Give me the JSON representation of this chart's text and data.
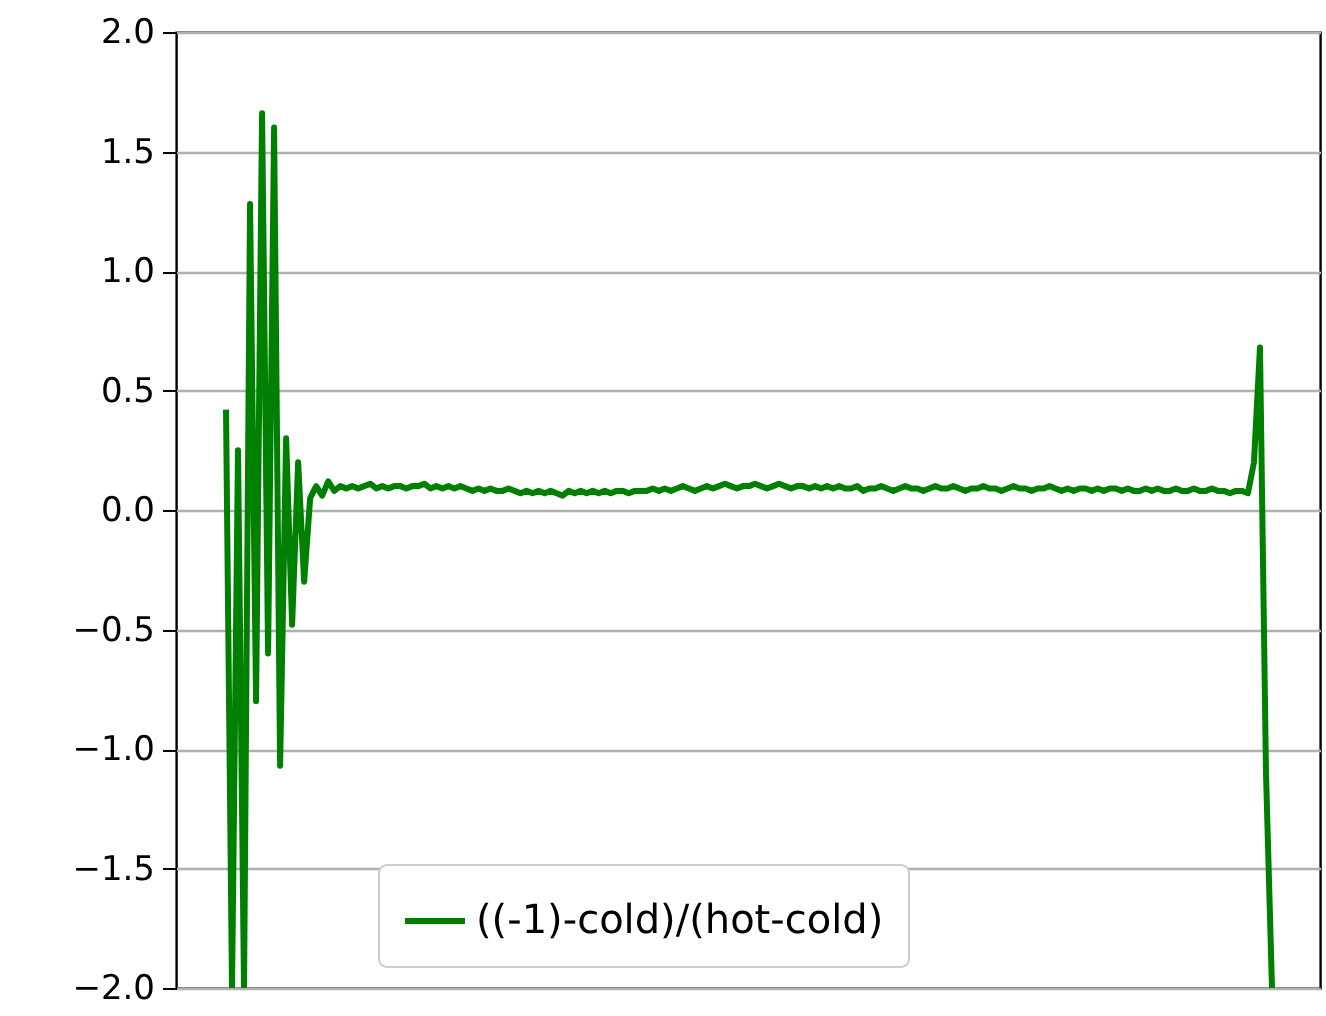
{
  "chart_data": {
    "type": "line",
    "ylim": [
      -2,
      2
    ],
    "yticks": [
      {
        "value": -2,
        "label": "−2.0"
      },
      {
        "value": -1.5,
        "label": "−1.5"
      },
      {
        "value": -1,
        "label": "−1.0"
      },
      {
        "value": -0.5,
        "label": "−0.5"
      },
      {
        "value": 0,
        "label": "0.0"
      },
      {
        "value": 0.5,
        "label": "0.5"
      },
      {
        "value": 1,
        "label": "1.0"
      },
      {
        "value": 1.5,
        "label": "1.5"
      },
      {
        "value": 2,
        "label": "2.0"
      }
    ],
    "grid": "y",
    "legend": "bottom",
    "tick_labels": "y",
    "categories": [
      null,
      null,
      null,
      null,
      null,
      null,
      null,
      null,
      null,
      null,
      null,
      null,
      null,
      null,
      null,
      null,
      null,
      null,
      null,
      null,
      null,
      null,
      null,
      null,
      null,
      null,
      null,
      null,
      null,
      null,
      null,
      null,
      null,
      null,
      null,
      null,
      null,
      null,
      null,
      null,
      null,
      null,
      null,
      null,
      null,
      null,
      null,
      null,
      null,
      null,
      null,
      null,
      null,
      null,
      null,
      null,
      null,
      null,
      null,
      null,
      null,
      null,
      null,
      null,
      null,
      null,
      null,
      null,
      null,
      null,
      null,
      null,
      null,
      null,
      null,
      null,
      null,
      null,
      null,
      null,
      null,
      null,
      null,
      null,
      null,
      null,
      null,
      null,
      null,
      null,
      null,
      null,
      null,
      null,
      null,
      null,
      null,
      null,
      null,
      null,
      null,
      null,
      null,
      null,
      null,
      null,
      null,
      null,
      null,
      null,
      null,
      null,
      null,
      null,
      null,
      null,
      null,
      null,
      null,
      null,
      null,
      null,
      null,
      null,
      null,
      null,
      null,
      null,
      null,
      null,
      null,
      null,
      null,
      null,
      null,
      null,
      null,
      null,
      null,
      null,
      null,
      null,
      null,
      null,
      null,
      null,
      null,
      null,
      null,
      null,
      null,
      null,
      null,
      null,
      null,
      null,
      null,
      null,
      null,
      null,
      null,
      null,
      null,
      null,
      null,
      null,
      null,
      null,
      null,
      null,
      null,
      null,
      null,
      null,
      null
    ],
    "series": [
      {
        "name": "((-1)-cold)/(hot-cold)",
        "color": "#008000",
        "values": [
          0.42,
          -2.0,
          0.25,
          -2.0,
          1.28,
          -0.8,
          1.66,
          -0.6,
          1.6,
          -1.07,
          0.3,
          -0.48,
          0.2,
          -0.3,
          0.05,
          0.1,
          0.06,
          0.12,
          0.08,
          0.1,
          0.09,
          0.1,
          0.09,
          0.1,
          0.11,
          0.09,
          0.1,
          0.09,
          0.1,
          0.1,
          0.09,
          0.1,
          0.1,
          0.11,
          0.09,
          0.1,
          0.09,
          0.1,
          0.09,
          0.1,
          0.09,
          0.08,
          0.09,
          0.08,
          0.09,
          0.08,
          0.08,
          0.09,
          0.08,
          0.07,
          0.08,
          0.07,
          0.08,
          0.07,
          0.08,
          0.07,
          0.06,
          0.08,
          0.07,
          0.08,
          0.07,
          0.08,
          0.07,
          0.08,
          0.07,
          0.08,
          0.08,
          0.07,
          0.08,
          0.08,
          0.08,
          0.09,
          0.08,
          0.09,
          0.08,
          0.09,
          0.1,
          0.09,
          0.08,
          0.09,
          0.1,
          0.09,
          0.1,
          0.11,
          0.1,
          0.09,
          0.1,
          0.1,
          0.11,
          0.1,
          0.09,
          0.1,
          0.11,
          0.1,
          0.09,
          0.1,
          0.1,
          0.09,
          0.1,
          0.09,
          0.1,
          0.09,
          0.1,
          0.09,
          0.09,
          0.1,
          0.08,
          0.09,
          0.09,
          0.1,
          0.09,
          0.08,
          0.09,
          0.1,
          0.09,
          0.09,
          0.08,
          0.09,
          0.1,
          0.09,
          0.09,
          0.1,
          0.09,
          0.08,
          0.09,
          0.09,
          0.1,
          0.09,
          0.09,
          0.08,
          0.09,
          0.1,
          0.09,
          0.09,
          0.08,
          0.09,
          0.09,
          0.1,
          0.09,
          0.08,
          0.09,
          0.08,
          0.09,
          0.09,
          0.08,
          0.09,
          0.08,
          0.09,
          0.09,
          0.08,
          0.09,
          0.08,
          0.08,
          0.09,
          0.08,
          0.09,
          0.08,
          0.08,
          0.09,
          0.08,
          0.08,
          0.09,
          0.08,
          0.08,
          0.09,
          0.08,
          0.08,
          0.07,
          0.08,
          0.08,
          0.07,
          0.2,
          0.68,
          -1.1,
          -2.0
        ]
      }
    ]
  }
}
